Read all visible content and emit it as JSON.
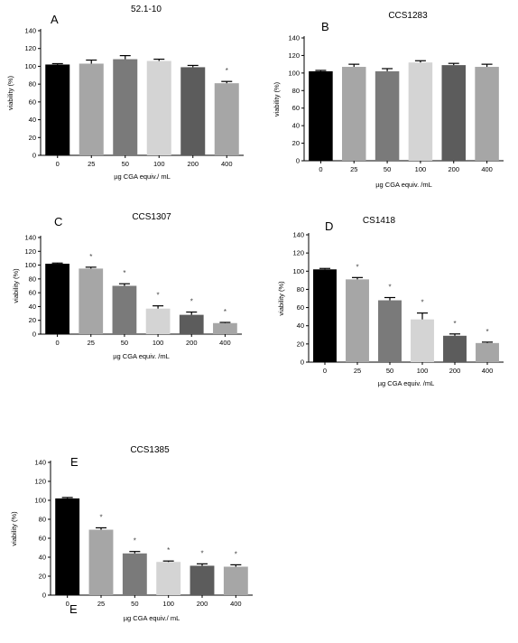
{
  "chart_data": [
    {
      "type": "bar",
      "panel_letter": "A",
      "title": "52.1-10",
      "xlabel": "µg CGA equiv./ mL",
      "ylabel": "viability (%)",
      "ylim": [
        0,
        140
      ],
      "yticks": [
        0,
        20,
        40,
        60,
        80,
        100,
        120,
        140
      ],
      "categories": [
        "0",
        "25",
        "50",
        "100",
        "200",
        "400"
      ],
      "values": [
        102,
        103,
        108,
        106,
        99,
        81
      ],
      "errors": [
        1,
        4,
        4,
        2,
        2,
        2
      ],
      "significance": [
        "",
        "",
        "",
        "",
        "",
        "*"
      ],
      "bar_colors": [
        "#000000",
        "#a6a6a6",
        "#7a7a7a",
        "#d4d4d4",
        "#5c5c5c",
        "#a6a6a6"
      ]
    },
    {
      "type": "bar",
      "panel_letter": "B",
      "title": "CCS1283",
      "xlabel": "µg CGA equiv. /mL",
      "ylabel": "viability (%)",
      "ylim": [
        0,
        140
      ],
      "yticks": [
        0,
        20,
        40,
        60,
        80,
        100,
        120,
        140
      ],
      "categories": [
        "0",
        "25",
        "50",
        "100",
        "200",
        "400"
      ],
      "values": [
        102,
        107,
        102,
        112,
        109,
        107
      ],
      "errors": [
        1,
        3,
        3,
        2,
        2,
        3
      ],
      "significance": [
        "",
        "",
        "",
        "",
        "",
        ""
      ],
      "bar_colors": [
        "#000000",
        "#a6a6a6",
        "#7a7a7a",
        "#d4d4d4",
        "#5c5c5c",
        "#a6a6a6"
      ]
    },
    {
      "type": "bar",
      "panel_letter": "C",
      "title": "CCS1307",
      "xlabel": "µg CGA equiv. /mL",
      "ylabel": "viability (%)",
      "ylim": [
        0,
        140
      ],
      "yticks": [
        0,
        20,
        40,
        60,
        80,
        100,
        120,
        140
      ],
      "categories": [
        "0",
        "25",
        "50",
        "100",
        "200",
        "400"
      ],
      "values": [
        102,
        95,
        70,
        37,
        28,
        16
      ],
      "errors": [
        1,
        2,
        3,
        4,
        4,
        1
      ],
      "significance": [
        "",
        "*",
        "*",
        "*",
        "*",
        "*"
      ],
      "bar_colors": [
        "#000000",
        "#a6a6a6",
        "#7a7a7a",
        "#d4d4d4",
        "#5c5c5c",
        "#a6a6a6"
      ]
    },
    {
      "type": "bar",
      "panel_letter": "D",
      "title": "CS1418",
      "xlabel": "µg CGA equiv. /mL",
      "ylabel": "viability (%)",
      "ylim": [
        0,
        140
      ],
      "yticks": [
        0,
        20,
        40,
        60,
        80,
        100,
        120,
        140
      ],
      "categories": [
        "0",
        "25",
        "50",
        "100",
        "200",
        "400"
      ],
      "values": [
        102,
        91,
        68,
        47,
        29,
        21
      ],
      "errors": [
        1,
        2,
        3,
        7,
        2,
        1
      ],
      "significance": [
        "",
        "*",
        "*",
        "*",
        "*",
        "*"
      ],
      "bar_colors": [
        "#000000",
        "#a6a6a6",
        "#7a7a7a",
        "#d4d4d4",
        "#5c5c5c",
        "#a6a6a6"
      ]
    },
    {
      "type": "bar",
      "panel_letter": "E",
      "panel_letter_bottom": "E",
      "title": "CCS1385",
      "xlabel": "µg CGA equiv./ mL",
      "ylabel": "viability (%)",
      "ylim": [
        0,
        140
      ],
      "yticks": [
        0,
        20,
        40,
        60,
        80,
        100,
        120,
        140
      ],
      "categories": [
        "0",
        "25",
        "50",
        "100",
        "200",
        "400"
      ],
      "values": [
        102,
        69,
        44,
        35,
        31,
        30
      ],
      "errors": [
        1,
        2,
        2,
        1,
        2,
        2
      ],
      "significance": [
        "",
        "*",
        "*",
        "*",
        "*",
        "*"
      ],
      "bar_colors": [
        "#000000",
        "#a6a6a6",
        "#7a7a7a",
        "#d4d4d4",
        "#5c5c5c",
        "#a6a6a6"
      ]
    }
  ]
}
